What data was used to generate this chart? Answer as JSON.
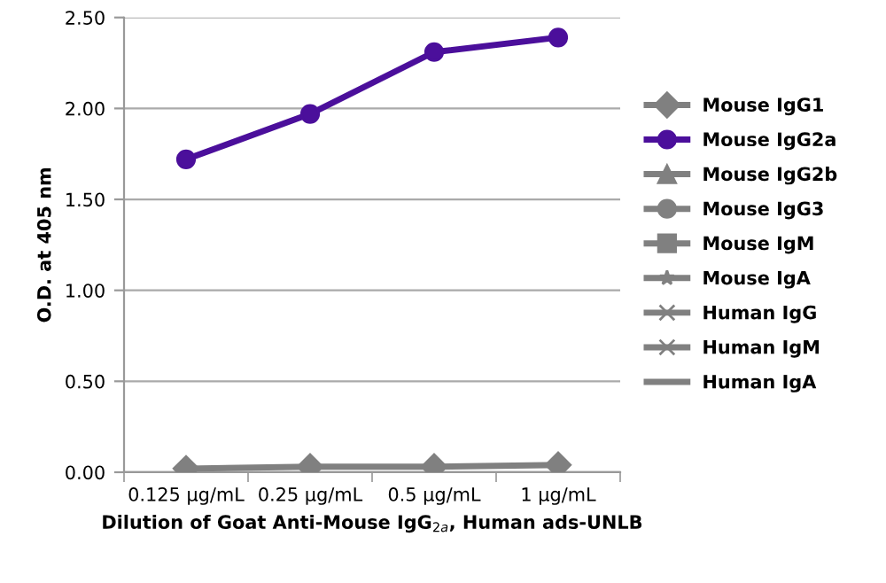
{
  "chart_data": {
    "type": "line",
    "xlabel": "Dilution of Goat Anti-Mouse IgG$_{2a}$, Human ads-UNLB",
    "ylabel": "O.D. at 405 nm",
    "categories": [
      "0.125 µg/mL",
      "0.25 µg/mL",
      "0.5 µg/mL",
      "1 µg/mL"
    ],
    "ylim": [
      0,
      2.5
    ],
    "yticks": [
      {
        "value": 0,
        "label": "0.00"
      },
      {
        "value": 0.5,
        "label": "0.50"
      },
      {
        "value": 1,
        "label": "1.00"
      },
      {
        "value": 1.5,
        "label": "1.50"
      },
      {
        "value": 2,
        "label": "2.00"
      },
      {
        "value": 2.5,
        "label": "2.50"
      }
    ],
    "grid": "y",
    "legend": "right",
    "line_style": "solid",
    "series": [
      {
        "name": "Mouse IgG1",
        "color": "#808080",
        "marker": "diamond",
        "values": [
          0.02,
          0.03,
          0.03,
          0.04
        ]
      },
      {
        "name": "Mouse IgG2a",
        "color": "#4b0f9b",
        "marker": "circle",
        "values": [
          1.72,
          1.97,
          2.31,
          2.39
        ]
      },
      {
        "name": "Mouse IgG2b",
        "color": "#808080",
        "marker": "triangle",
        "values": [
          null,
          null,
          null,
          null
        ]
      },
      {
        "name": "Mouse IgG3",
        "color": "#808080",
        "marker": "circle",
        "values": [
          null,
          null,
          null,
          null
        ]
      },
      {
        "name": "Mouse IgM",
        "color": "#808080",
        "marker": "square",
        "values": [
          null,
          null,
          null,
          null
        ]
      },
      {
        "name": "Mouse IgA",
        "color": "#808080",
        "marker": "star",
        "values": [
          null,
          null,
          null,
          null
        ]
      },
      {
        "name": "Human IgG",
        "color": "#808080",
        "marker": "cross",
        "values": [
          null,
          null,
          null,
          null
        ]
      },
      {
        "name": "Human IgM",
        "color": "#808080",
        "marker": "cross",
        "values": [
          null,
          null,
          null,
          null
        ]
      },
      {
        "name": "Human IgA",
        "color": "#808080",
        "marker": "none",
        "values": [
          null,
          null,
          null,
          null
        ]
      }
    ]
  }
}
